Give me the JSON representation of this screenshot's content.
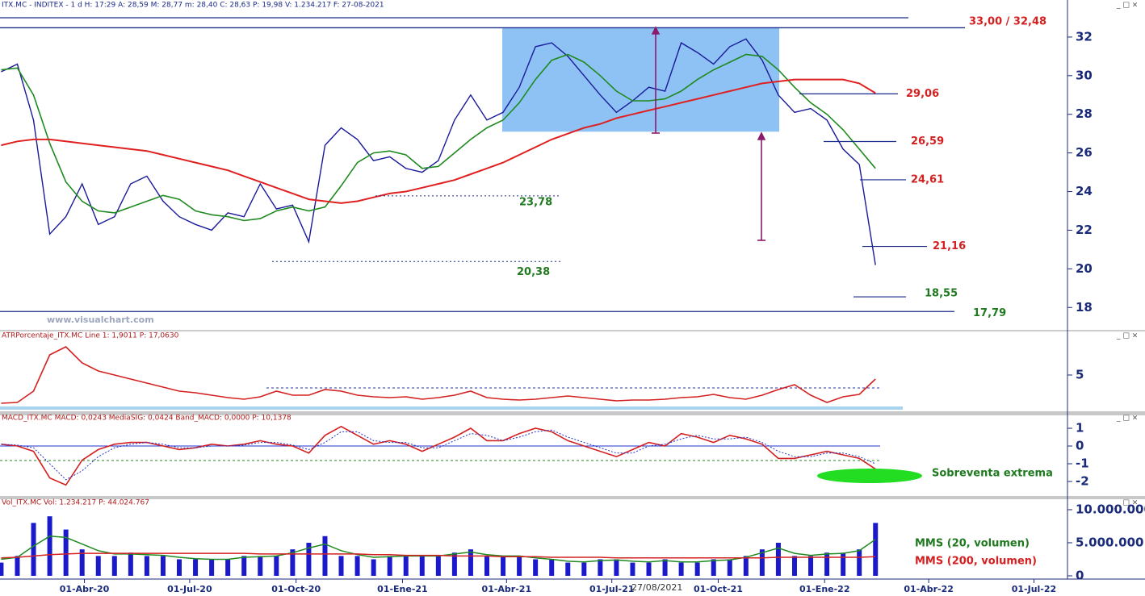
{
  "chart_data": [
    {
      "type": "line",
      "title": "ITX.MC - INDITEX -  1 d  H: 17:29  A: 28,59  M: 28,77  m: 28,40  C: 28,63  P: 19,98  V: 1.234.217  F: 27-08-2021",
      "watermark": "www.visualchart.com",
      "cursor_label": "27/08/2021",
      "x": [
        "2020-01-20",
        "2020-02-03",
        "2020-02-17",
        "2020-03-02",
        "2020-03-16",
        "2020-03-30",
        "2020-04-13",
        "2020-04-27",
        "2020-05-11",
        "2020-05-25",
        "2020-06-08",
        "2020-06-22",
        "2020-07-06",
        "2020-07-20",
        "2020-08-03",
        "2020-08-17",
        "2020-08-31",
        "2020-09-14",
        "2020-09-28",
        "2020-10-12",
        "2020-10-26",
        "2020-11-09",
        "2020-11-23",
        "2020-12-07",
        "2020-12-21",
        "2021-01-04",
        "2021-01-18",
        "2021-02-01",
        "2021-02-15",
        "2021-03-01",
        "2021-03-15",
        "2021-03-29",
        "2021-04-12",
        "2021-04-26",
        "2021-05-10",
        "2021-05-24",
        "2021-06-07",
        "2021-06-21",
        "2021-07-05",
        "2021-07-19",
        "2021-08-02",
        "2021-08-16",
        "2021-08-30",
        "2021-09-13",
        "2021-09-27",
        "2021-10-11",
        "2021-10-25",
        "2021-11-08",
        "2021-11-22",
        "2021-12-06",
        "2021-12-20",
        "2022-01-03",
        "2022-01-17",
        "2022-01-31",
        "2022-02-14"
      ],
      "xlim": [
        "2020-01-19",
        "2022-07-30"
      ],
      "xticks": [
        {
          "value": "2020-04-01",
          "label": "01-Abr-20"
        },
        {
          "value": "2020-07-01",
          "label": "01-Jul-20"
        },
        {
          "value": "2020-10-01",
          "label": "01-Oct-20"
        },
        {
          "value": "2021-01-01",
          "label": "01-Ene-21"
        },
        {
          "value": "2021-04-01",
          "label": "01-Abr-21"
        },
        {
          "value": "2021-07-01",
          "label": "01-Jul-21"
        },
        {
          "value": "2021-10-01",
          "label": "01-Oct-21"
        },
        {
          "value": "2022-01-01",
          "label": "01-Ene-22"
        },
        {
          "value": "2022-04-01",
          "label": "01-Abr-22"
        },
        {
          "value": "2022-07-01",
          "label": "01-Jul-22"
        }
      ],
      "ylim": [
        16.8,
        33.5
      ],
      "yticks": [
        18,
        20,
        22,
        24,
        26,
        28,
        30,
        32
      ],
      "series": [
        {
          "type": "line",
          "color": "#1a1a9a",
          "width": 1.4,
          "values": [
            30.2,
            30.6,
            27.7,
            21.8,
            22.7,
            24.4,
            22.3,
            22.7,
            24.4,
            24.8,
            23.5,
            22.7,
            22.3,
            22.0,
            22.9,
            22.7,
            24.4,
            23.1,
            23.3,
            21.4,
            26.4,
            27.3,
            26.7,
            25.6,
            25.8,
            25.2,
            25.0,
            25.6,
            27.7,
            29.0,
            27.7,
            28.1,
            29.4,
            31.5,
            31.7,
            31.0,
            30.0,
            29.0,
            28.1,
            28.7,
            29.4,
            29.2,
            31.7,
            31.2,
            30.6,
            31.5,
            31.9,
            30.8,
            29.0,
            28.1,
            28.3,
            27.7,
            26.2,
            25.4,
            20.2
          ]
        },
        {
          "type": "line",
          "color": "#1f8a1f",
          "width": 1.6,
          "values": [
            30.3,
            30.4,
            29.0,
            26.5,
            24.5,
            23.5,
            23.0,
            22.9,
            23.2,
            23.5,
            23.8,
            23.6,
            23.0,
            22.8,
            22.7,
            22.5,
            22.6,
            23.0,
            23.2,
            23.0,
            23.2,
            24.3,
            25.5,
            26.0,
            26.1,
            25.9,
            25.2,
            25.3,
            26.0,
            26.7,
            27.3,
            27.7,
            28.6,
            29.8,
            30.8,
            31.1,
            30.7,
            30.0,
            29.2,
            28.7,
            28.7,
            28.8,
            29.2,
            29.8,
            30.3,
            30.7,
            31.1,
            31.0,
            30.3,
            29.4,
            28.6,
            28.0,
            27.2,
            26.2,
            25.2
          ]
        },
        {
          "type": "line",
          "color": "#e02020",
          "width": 2,
          "values": [
            26.4,
            26.6,
            26.7,
            26.7,
            26.6,
            26.5,
            26.4,
            26.3,
            26.2,
            26.1,
            25.9,
            25.7,
            25.5,
            25.3,
            25.1,
            24.8,
            24.5,
            24.2,
            23.9,
            23.6,
            23.5,
            23.4,
            23.5,
            23.7,
            23.9,
            24.0,
            24.2,
            24.4,
            24.6,
            24.9,
            25.2,
            25.5,
            25.9,
            26.3,
            26.7,
            27.0,
            27.3,
            27.5,
            27.8,
            28.0,
            28.2,
            28.4,
            28.6,
            28.8,
            29.0,
            29.2,
            29.4,
            29.6,
            29.7,
            29.8,
            29.8,
            29.8,
            29.8,
            29.6,
            29.1
          ]
        }
      ],
      "resistance": {
        "values": [
          33.0,
          32.48
        ],
        "label": "33,00 / 32,48"
      },
      "levels": [
        {
          "value": 29.06,
          "label": "29,06",
          "color": "#d42020"
        },
        {
          "value": 26.59,
          "label": "26,59",
          "color": "#d42020"
        },
        {
          "value": 24.61,
          "label": "24,61",
          "color": "#d42020"
        },
        {
          "value": 21.16,
          "label": "21,16",
          "color": "#d42020"
        },
        {
          "value": 18.55,
          "label": "18,55",
          "color": "#1f7a1f"
        },
        {
          "value": 17.79,
          "label": "17,79",
          "color": "#1f7a1f"
        },
        {
          "value": 23.78,
          "label": "23,78",
          "color": "#1f7a1f"
        },
        {
          "value": 20.38,
          "label": "20,38",
          "color": "#1f7a1f"
        }
      ],
      "box": {
        "y": [
          27.1,
          32.5
        ],
        "color": "#8ec2f4"
      }
    },
    {
      "type": "line",
      "title": "ATRPorcentaje_ITX.MC  Line 1: 1,9011  P: 17,0630",
      "ylim": [
        0.5,
        9.5
      ],
      "yticks": [
        5
      ],
      "reference_lines": [
        {
          "value": 3.4,
          "color": "#2233aa",
          "dash": true
        }
      ],
      "series": [
        {
          "type": "line",
          "color": "#d42020",
          "width": 1.6,
          "values": [
            1.5,
            1.6,
            3,
            7.5,
            8.5,
            6.5,
            5.5,
            5,
            4.5,
            4,
            3.5,
            3,
            2.8,
            2.5,
            2.2,
            2,
            2.3,
            3,
            2.5,
            2.5,
            3.2,
            3.0,
            2.5,
            2.3,
            2.2,
            2.3,
            2.0,
            2.2,
            2.5,
            3.0,
            2.2,
            2.0,
            1.9,
            2.0,
            2.2,
            2.4,
            2.2,
            2.0,
            1.8,
            1.9,
            1.9,
            2.0,
            2.2,
            2.3,
            2.6,
            2.2,
            2.0,
            2.5,
            3.2,
            3.8,
            2.5,
            1.6,
            2.3,
            2.6,
            4.5
          ]
        }
      ]
    },
    {
      "type": "line",
      "title": "MACD_ITX.MC  MACD: 0,0243  MediaSIG: 0,0424  Band_MACD: 0,0000  P: 10,1378",
      "ylim": [
        -2.82,
        1.73
      ],
      "yticks": [
        1,
        0,
        -1,
        -2
      ],
      "reference_lines": [
        {
          "value": 0,
          "color": "#2233cc",
          "dash": false
        },
        {
          "value": -0.82,
          "color": "#1f8a1f",
          "dash": true
        }
      ],
      "annotation": "Sobreventa extrema",
      "series": [
        {
          "type": "line",
          "color": "#d42020",
          "width": 1.6,
          "values": [
            0.1,
            0,
            -0.3,
            -1.8,
            -2.2,
            -0.8,
            -0.2,
            0.1,
            0.2,
            0.2,
            0,
            -0.2,
            -0.1,
            0.1,
            0.0,
            0.1,
            0.3,
            0.1,
            0,
            -0.4,
            0.6,
            1.1,
            0.6,
            0.1,
            0.3,
            0.1,
            -0.3,
            0.1,
            0.5,
            1.0,
            0.3,
            0.3,
            0.7,
            1.0,
            0.8,
            0.3,
            0,
            -0.3,
            -0.6,
            -0.2,
            0.2,
            0.0,
            0.7,
            0.5,
            0.2,
            0.6,
            0.4,
            0.1,
            -0.7,
            -0.7,
            -0.5,
            -0.3,
            -0.5,
            -0.7,
            -1.3
          ]
        },
        {
          "type": "line",
          "color": "#2233cc",
          "width": 1,
          "dash": true,
          "values": [
            0.1,
            0.05,
            -0.1,
            -1.0,
            -1.9,
            -1.4,
            -0.6,
            -0.1,
            0.1,
            0.2,
            0.1,
            -0.1,
            -0.1,
            0.0,
            0.0,
            0.05,
            0.2,
            0.2,
            0.05,
            -0.2,
            0.2,
            0.8,
            0.8,
            0.3,
            0.2,
            0.2,
            -0.1,
            -0.1,
            0.3,
            0.7,
            0.6,
            0.3,
            0.5,
            0.8,
            0.9,
            0.5,
            0.2,
            -0.1,
            -0.4,
            -0.4,
            0.0,
            0.1,
            0.4,
            0.6,
            0.4,
            0.4,
            0.5,
            0.2,
            -0.3,
            -0.6,
            -0.6,
            -0.4,
            -0.4,
            -0.6,
            -1.0
          ]
        }
      ]
    },
    {
      "type": "bar",
      "title": "Vol_ITX.MC  Vol: 1.234.217  P: 44.024.767",
      "ylim": [
        -490000,
        11460000
      ],
      "yticks": [
        {
          "value": 10000000,
          "label": "10.000.000"
        },
        {
          "value": 5000000,
          "label": "5.000.000"
        },
        0
      ],
      "series": [
        {
          "type": "bar",
          "color": "#1a1acc",
          "values": [
            2000000,
            3000000,
            8000000,
            9000000,
            7000000,
            4000000,
            3000000,
            3000000,
            3500000,
            3000000,
            3000000,
            2500000,
            2500000,
            2500000,
            2500000,
            3000000,
            3000000,
            3000000,
            4000000,
            5000000,
            6000000,
            3000000,
            3000000,
            2500000,
            3000000,
            3000000,
            3000000,
            3000000,
            3500000,
            4000000,
            3000000,
            3000000,
            3000000,
            2500000,
            2500000,
            2000000,
            2000000,
            2500000,
            2500000,
            2000000,
            2000000,
            2500000,
            2000000,
            2000000,
            2500000,
            2500000,
            3000000,
            4000000,
            5000000,
            3000000,
            3000000,
            3500000,
            3500000,
            4000000,
            8000000
          ]
        },
        {
          "type": "line",
          "name": "MMS (20, volumen)",
          "color": "#1f8a1f",
          "width": 1.5,
          "values": [
            2500000,
            2800000,
            4500000,
            6000000,
            5800000,
            4800000,
            3800000,
            3300000,
            3300000,
            3200000,
            3100000,
            2800000,
            2600000,
            2500000,
            2500000,
            2800000,
            2900000,
            3000000,
            3500000,
            4200000,
            4800000,
            3800000,
            3200000,
            2800000,
            2900000,
            3000000,
            3000000,
            3000000,
            3300000,
            3600000,
            3200000,
            3000000,
            3000000,
            2700000,
            2500000,
            2200000,
            2100000,
            2300000,
            2400000,
            2200000,
            2100000,
            2300000,
            2100000,
            2100000,
            2300000,
            2400000,
            2800000,
            3500000,
            4200000,
            3400000,
            3100000,
            3300000,
            3400000,
            3800000,
            5500000
          ]
        },
        {
          "type": "line",
          "name": "MMS (200, volumen)",
          "color": "#d42020",
          "width": 1.5,
          "values": [
            2700000,
            2800000,
            3000000,
            3200000,
            3300000,
            3400000,
            3400000,
            3400000,
            3400000,
            3400000,
            3400000,
            3400000,
            3400000,
            3400000,
            3400000,
            3400000,
            3300000,
            3300000,
            3300000,
            3300000,
            3300000,
            3300000,
            3300000,
            3200000,
            3200000,
            3100000,
            3100000,
            3100000,
            3000000,
            3000000,
            3000000,
            2900000,
            2900000,
            2900000,
            2800000,
            2800000,
            2800000,
            2800000,
            2700000,
            2700000,
            2700000,
            2700000,
            2700000,
            2700000,
            2700000,
            2700000,
            2700000,
            2700000,
            2800000,
            2800000,
            2800000,
            2800000,
            2800000,
            2800000,
            2900000
          ]
        }
      ]
    }
  ]
}
